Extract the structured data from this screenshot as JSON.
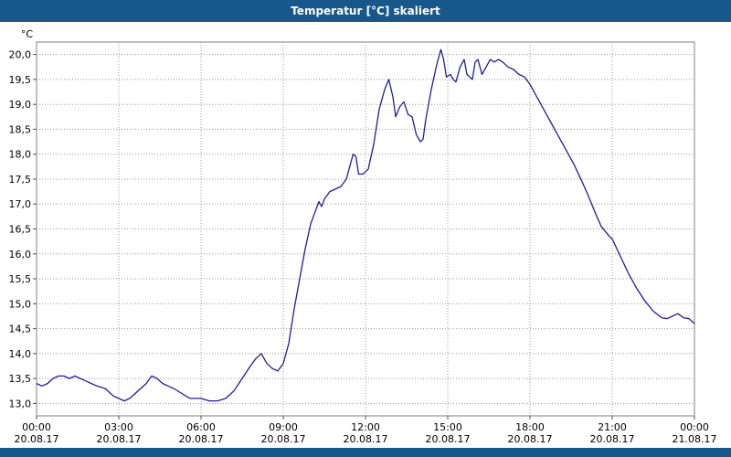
{
  "window": {
    "title": "Temperatur [°C] skaliert"
  },
  "theme": {
    "titlebar_color": "#17578c",
    "plot_border_color": "#808080",
    "grid_color": "#999999",
    "tick_color": "#555555"
  },
  "chart_data": {
    "type": "line",
    "title": "Temperatur [°C] skaliert",
    "ylabel": "°C",
    "grid": true,
    "legend": "none",
    "line_color": "#1e1e9e",
    "ylim": [
      12.75,
      20.25
    ],
    "x_hours_lim": [
      0,
      24
    ],
    "yticks": [
      13.0,
      13.5,
      14.0,
      14.5,
      15.0,
      15.5,
      16.0,
      16.5,
      17.0,
      17.5,
      18.0,
      18.5,
      19.0,
      19.5,
      20.0
    ],
    "ytick_labels": [
      "13,0",
      "13,5",
      "14,0",
      "14,5",
      "15,0",
      "15,5",
      "16,0",
      "16,5",
      "17,0",
      "17,5",
      "18,0",
      "18,5",
      "19,0",
      "19,5",
      "20,0"
    ],
    "xticks": [
      0,
      3,
      6,
      9,
      12,
      15,
      18,
      21,
      24
    ],
    "xtick_labels": [
      "00:00",
      "03:00",
      "06:00",
      "09:00",
      "12:00",
      "15:00",
      "18:00",
      "21:00",
      "00:00"
    ],
    "xtick_dates": [
      "20.08.17",
      "20.08.17",
      "20.08.17",
      "20.08.17",
      "20.08.17",
      "20.08.17",
      "20.08.17",
      "20.08.17",
      "21.08.17"
    ],
    "series": [
      {
        "name": "Temperatur",
        "x": [
          0,
          0.2,
          0.4,
          0.6,
          0.8,
          1.0,
          1.2,
          1.4,
          1.6,
          1.8,
          2.0,
          2.2,
          2.5,
          2.8,
          3.0,
          3.2,
          3.4,
          3.6,
          3.8,
          4.0,
          4.2,
          4.4,
          4.6,
          4.8,
          5.0,
          5.3,
          5.6,
          6.0,
          6.3,
          6.6,
          6.9,
          7.2,
          7.5,
          7.8,
          8.0,
          8.2,
          8.4,
          8.6,
          8.8,
          9.0,
          9.2,
          9.4,
          9.6,
          9.8,
          10.0,
          10.2,
          10.3,
          10.4,
          10.5,
          10.7,
          10.9,
          11.1,
          11.3,
          11.45,
          11.55,
          11.65,
          11.75,
          11.9,
          12.0,
          12.1,
          12.3,
          12.5,
          12.7,
          12.85,
          13.0,
          13.1,
          13.25,
          13.4,
          13.55,
          13.7,
          13.85,
          14.0,
          14.1,
          14.2,
          14.4,
          14.6,
          14.75,
          14.85,
          14.95,
          15.1,
          15.2,
          15.3,
          15.45,
          15.6,
          15.7,
          15.8,
          15.9,
          16.0,
          16.1,
          16.25,
          16.4,
          16.55,
          16.7,
          16.85,
          17.0,
          17.2,
          17.4,
          17.6,
          17.8,
          18.0,
          18.2,
          18.4,
          18.7,
          19.0,
          19.3,
          19.6,
          19.9,
          20.1,
          20.4,
          20.6,
          20.9,
          21.0,
          21.3,
          21.6,
          21.9,
          22.2,
          22.5,
          22.8,
          23.0,
          23.2,
          23.4,
          23.6,
          23.8,
          24.0
        ],
        "y": [
          13.4,
          13.35,
          13.4,
          13.5,
          13.55,
          13.55,
          13.5,
          13.55,
          13.5,
          13.45,
          13.4,
          13.35,
          13.3,
          13.15,
          13.1,
          13.05,
          13.1,
          13.2,
          13.3,
          13.4,
          13.55,
          13.5,
          13.4,
          13.35,
          13.3,
          13.2,
          13.1,
          13.1,
          13.05,
          13.05,
          13.1,
          13.25,
          13.5,
          13.75,
          13.9,
          14.0,
          13.8,
          13.7,
          13.65,
          13.8,
          14.2,
          14.9,
          15.5,
          16.1,
          16.6,
          16.9,
          17.05,
          16.95,
          17.1,
          17.25,
          17.3,
          17.35,
          17.5,
          17.8,
          18.0,
          17.95,
          17.6,
          17.6,
          17.65,
          17.7,
          18.2,
          18.9,
          19.3,
          19.5,
          19.15,
          18.75,
          18.95,
          19.05,
          18.8,
          18.75,
          18.4,
          18.25,
          18.3,
          18.7,
          19.3,
          19.8,
          20.1,
          19.9,
          19.55,
          19.6,
          19.5,
          19.45,
          19.75,
          19.9,
          19.6,
          19.55,
          19.5,
          19.85,
          19.9,
          19.6,
          19.75,
          19.9,
          19.85,
          19.9,
          19.85,
          19.75,
          19.7,
          19.6,
          19.55,
          19.4,
          19.2,
          19.0,
          18.7,
          18.4,
          18.1,
          17.8,
          17.45,
          17.2,
          16.8,
          16.55,
          16.35,
          16.3,
          15.95,
          15.6,
          15.3,
          15.05,
          14.85,
          14.72,
          14.7,
          14.75,
          14.8,
          14.72,
          14.7,
          14.6
        ]
      }
    ]
  }
}
